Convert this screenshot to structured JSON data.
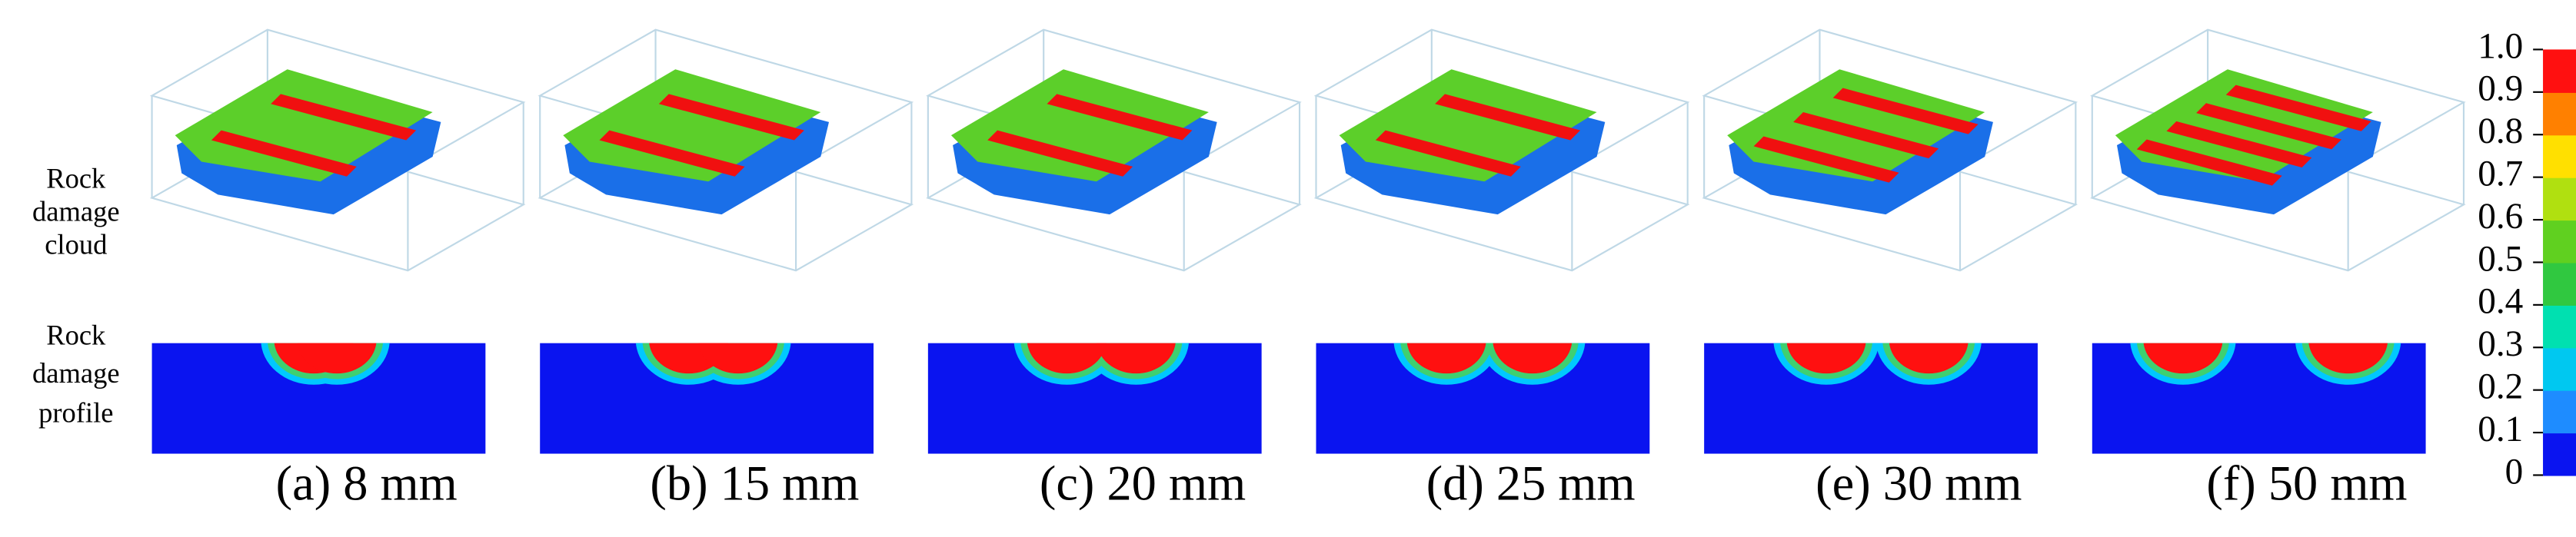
{
  "row_labels": [
    [
      "Rock",
      "damage",
      "cloud"
    ],
    [
      "Rock",
      "damage",
      "profile"
    ]
  ],
  "panels": [
    "(a) 8 mm",
    "(b) 15 mm",
    "(c) 20 mm",
    "(d) 25 mm",
    "(e) 30 mm",
    "(f) 50 mm"
  ],
  "colorbar": {
    "ticks": [
      "1.0",
      "0.9",
      "0.8",
      "0.7",
      "0.6",
      "0.5",
      "0.4",
      "0.3",
      "0.2",
      "0.1",
      "0"
    ]
  }
}
